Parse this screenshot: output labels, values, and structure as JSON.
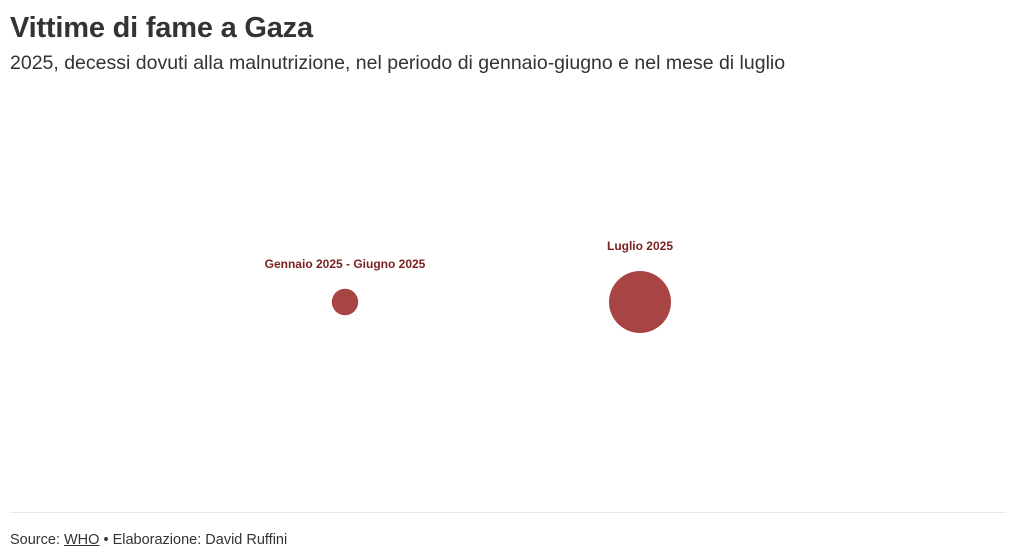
{
  "header": {
    "title": "Vittime di fame a Gaza",
    "subtitle": "2025, decessi dovuti alla malnutrizione, nel periodo di gennaio-giugno e nel mese di luglio"
  },
  "chart_data": {
    "type": "scatter",
    "title": "Vittime di fame a Gaza",
    "subtitle": "2025, decessi dovuti alla malnutrizione, nel periodo di gennaio-giugno e nel mese di luglio",
    "categories": [
      "Gennaio 2025 - Giugno 2025",
      "Luglio 2025"
    ],
    "series": [
      {
        "values": [
          18,
          99
        ]
      }
    ],
    "grid": false,
    "legend": "none",
    "colors": {
      "bubble": "#a84444",
      "label": "#7a1f1f"
    }
  },
  "footer": {
    "source_prefix": "Source: ",
    "source_link": "WHO",
    "separator": " • ",
    "credit": "Elaborazione: David Ruffini"
  }
}
